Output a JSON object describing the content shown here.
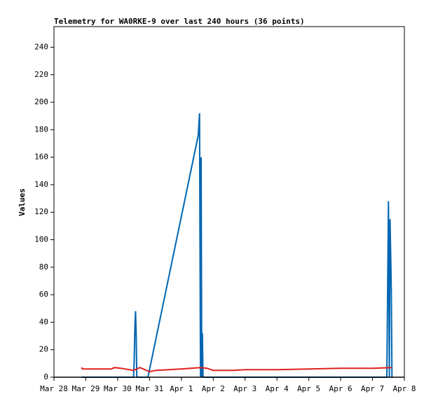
{
  "chart_data": {
    "type": "line",
    "title": "Telemetry for WA0RKE-9 over last 240 hours (36 points)",
    "ylabel": "Values",
    "xlim": [
      0,
      11
    ],
    "xticks": [
      {
        "value": 0,
        "label": "Mar 28"
      },
      {
        "value": 1,
        "label": "Mar 29"
      },
      {
        "value": 2,
        "label": "Mar 30"
      },
      {
        "value": 3,
        "label": "Mar 31"
      },
      {
        "value": 4,
        "label": "Apr 1"
      },
      {
        "value": 5,
        "label": "Apr 2"
      },
      {
        "value": 6,
        "label": "Apr 3"
      },
      {
        "value": 7,
        "label": "Apr 4"
      },
      {
        "value": 8,
        "label": "Apr 5"
      },
      {
        "value": 9,
        "label": "Apr 6"
      },
      {
        "value": 10,
        "label": "Apr 7"
      },
      {
        "value": 11,
        "label": "Apr 8"
      }
    ],
    "ylim": [
      0,
      255
    ],
    "yticks": [
      0,
      20,
      40,
      60,
      80,
      100,
      120,
      140,
      160,
      180,
      200,
      220,
      240
    ],
    "series": [
      {
        "color": "#0066b3",
        "x": [
          0.86,
          2.5,
          2.52,
          2.54,
          2.56,
          2.58,
          2.6,
          2.95,
          4.53,
          4.57,
          4.6,
          4.62,
          4.64,
          4.66,
          4.68,
          10.45,
          10.5,
          10.53,
          10.55,
          10.57,
          10.59,
          10.61,
          10.63
        ],
        "values": [
          0,
          0,
          12,
          37,
          48,
          32,
          0,
          0,
          176,
          192,
          0,
          160,
          0,
          32,
          0,
          0,
          128,
          0,
          115,
          89,
          62,
          0,
          0
        ]
      },
      {
        "color": "#e0201b",
        "x": [
          0.86,
          0.9,
          1.8,
          1.9,
          2.1,
          2.5,
          2.7,
          3.0,
          3.2,
          3.6,
          4.0,
          4.6,
          4.8,
          5.0,
          5.6,
          6.0,
          7.0,
          8.0,
          9.0,
          10.0,
          10.6
        ],
        "values": [
          7,
          6,
          6,
          7,
          6.5,
          5,
          7,
          4,
          5,
          5.5,
          6,
          7,
          6.5,
          5,
          5,
          5.5,
          5.5,
          6,
          6.5,
          6.5,
          7
        ]
      }
    ]
  }
}
